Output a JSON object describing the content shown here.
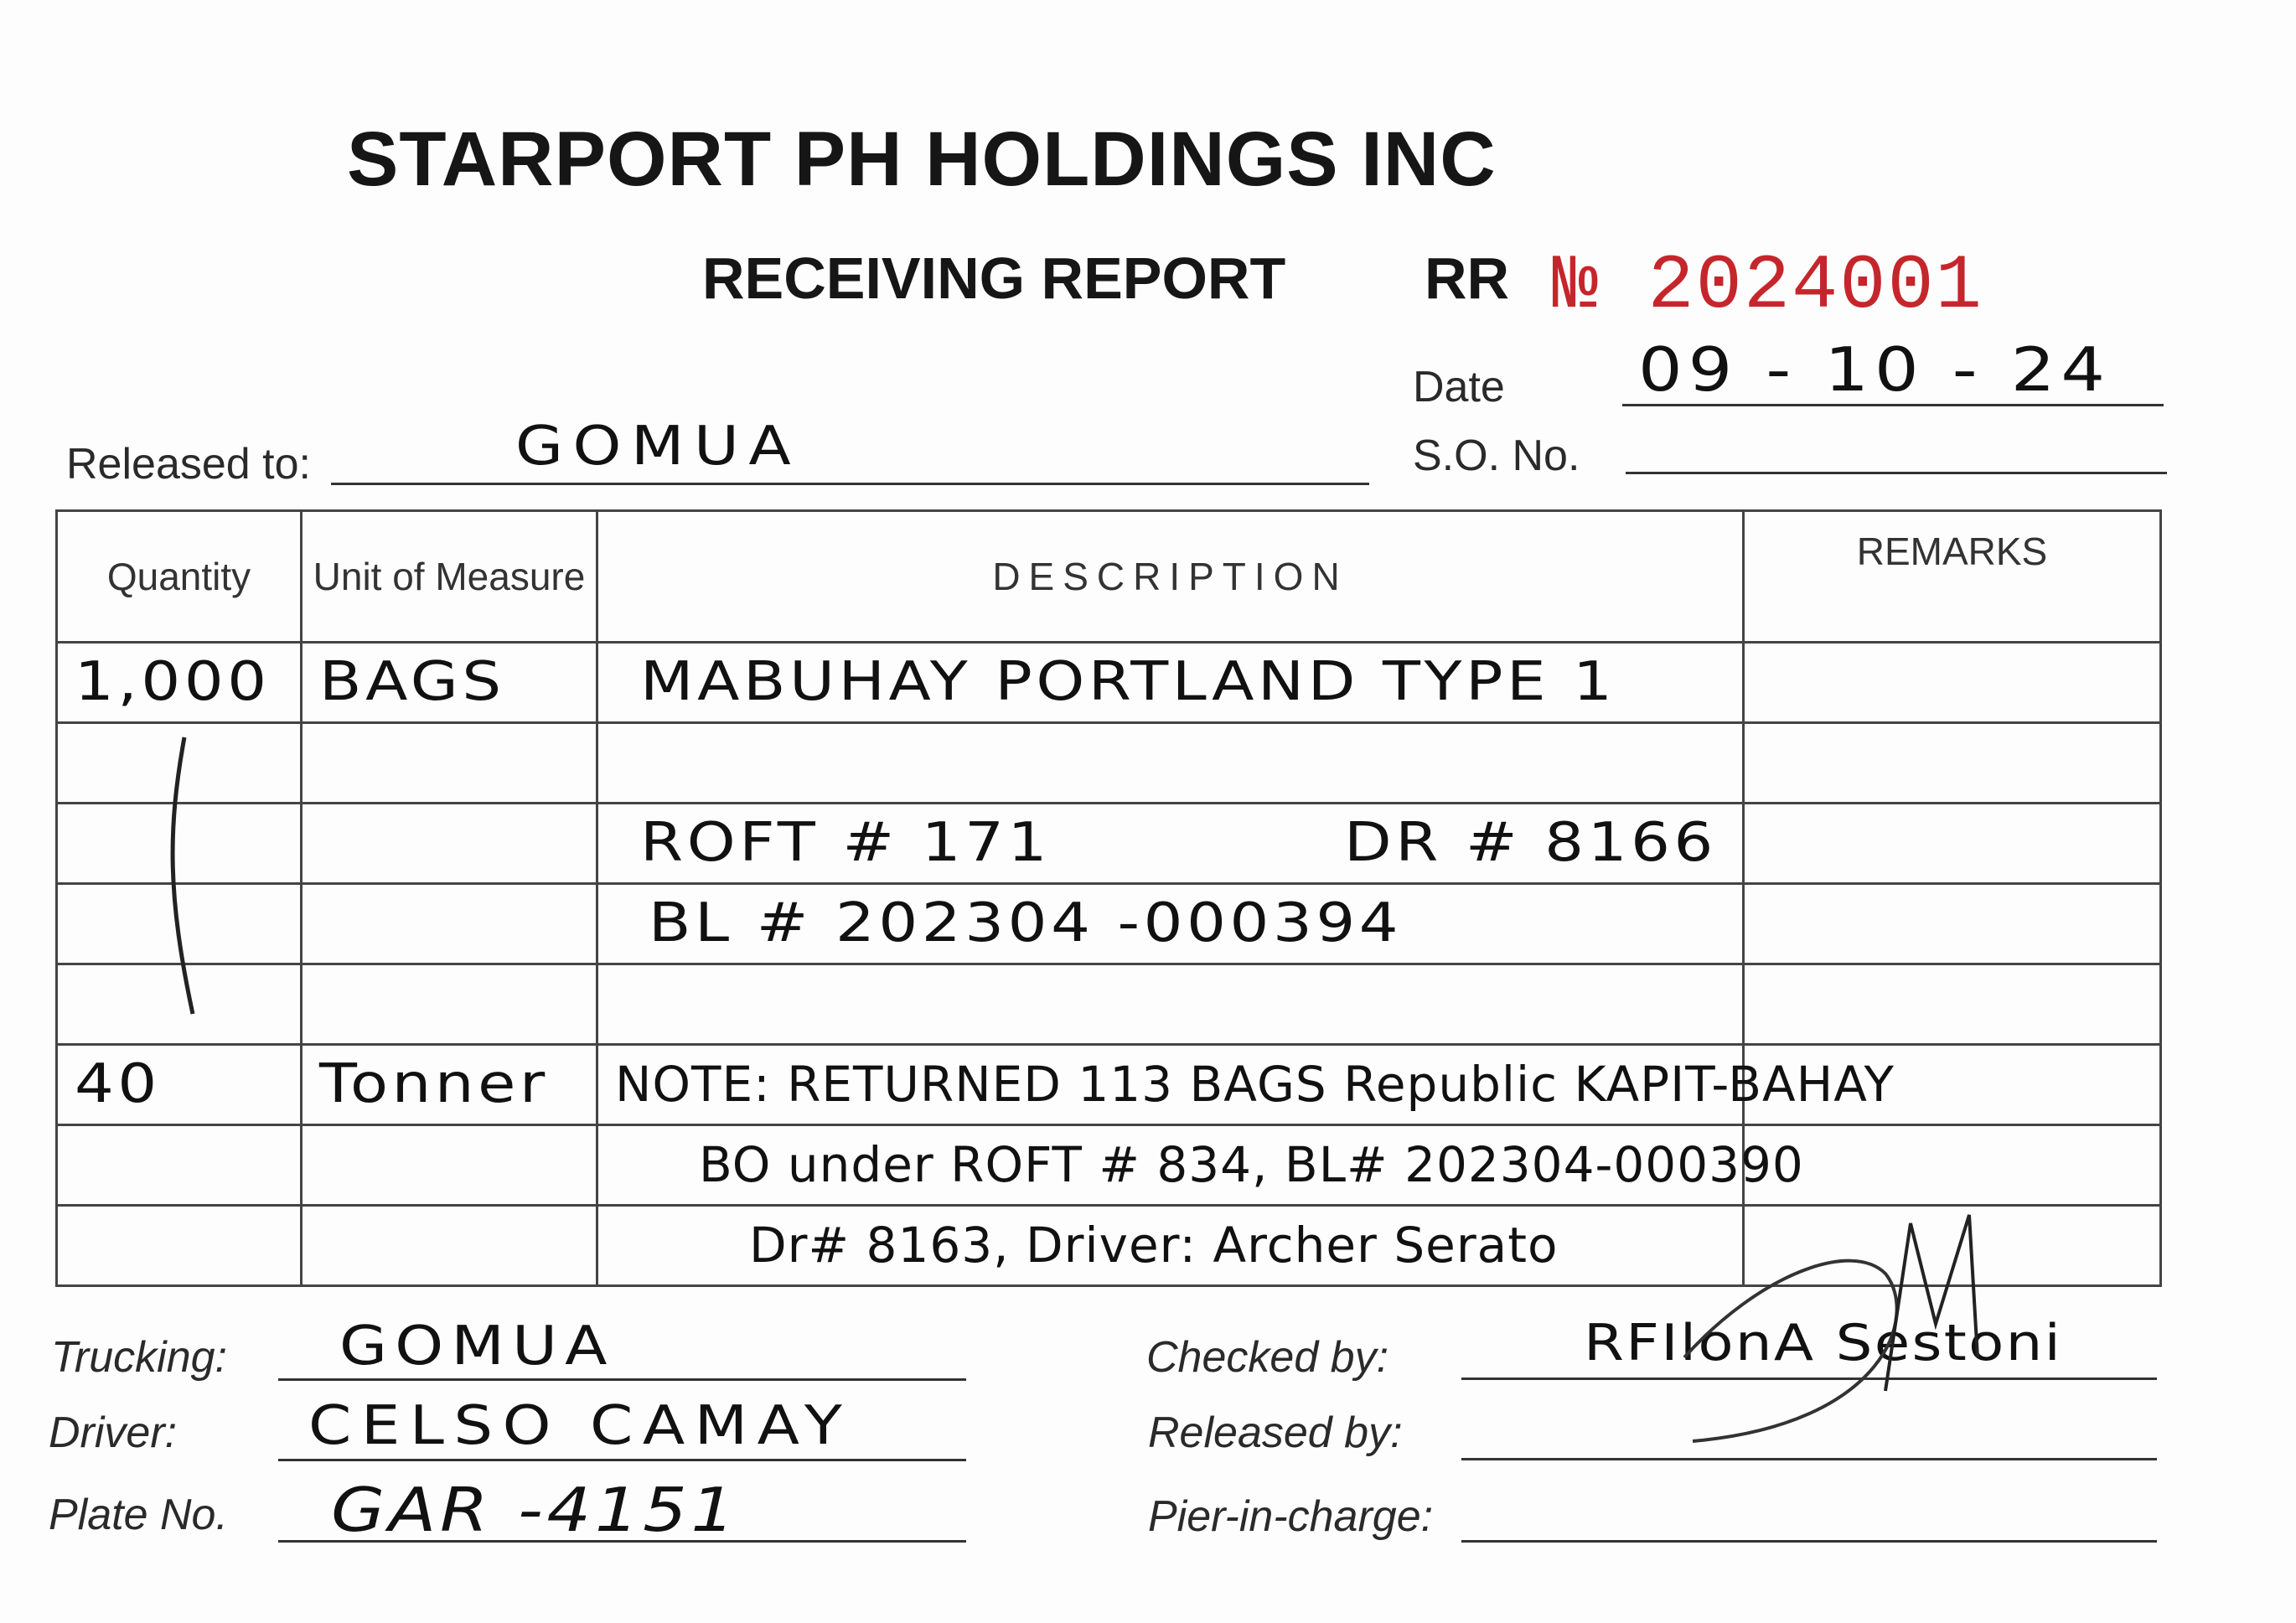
{
  "header": {
    "company": "STARPORT PH HOLDINGS INC",
    "report_title": "RECEIVING REPORT",
    "rr_label": "RR",
    "rr_number": "№ 2024001",
    "rr_number_color": "#c5262b"
  },
  "fields": {
    "date_label": "Date",
    "date_value": "09 - 10 - 24",
    "released_to_label": "Released to:",
    "released_to_value": "GOMUA",
    "so_no_label": "S.O. No.",
    "so_no_value": ""
  },
  "table": {
    "headers": [
      "Quantity",
      "Unit of Measure",
      "DESCRIPTION",
      "REMARKS"
    ],
    "rows": [
      {
        "qty": "1,000",
        "unit": "BAGS",
        "desc": "MABUHAY PORTLAND TYPE 1",
        "desc_right": "",
        "remarks": ""
      },
      {
        "qty": "",
        "unit": "",
        "desc": "",
        "desc_right": "",
        "remarks": ""
      },
      {
        "qty": "",
        "unit": "",
        "desc": "ROFT # 171",
        "desc_right": "DR # 8166",
        "remarks": ""
      },
      {
        "qty": "",
        "unit": "",
        "desc": "BL # 202304 -000394",
        "desc_right": "",
        "remarks": ""
      },
      {
        "qty": "",
        "unit": "",
        "desc": "",
        "desc_right": "",
        "remarks": ""
      },
      {
        "qty": "40",
        "unit": "Tonner",
        "desc": "NOTE: RETURNED 113 BAGS Republic KAPIT-BAHAY",
        "desc_right": "",
        "remarks": ""
      },
      {
        "qty": "",
        "unit": "",
        "desc": "BO under ROFT # 834, BL# 202304-000390",
        "desc_right": "",
        "remarks": ""
      },
      {
        "qty": "",
        "unit": "",
        "desc": "Dr# 8163, Driver: Archer Serato",
        "desc_right": "",
        "remarks": ""
      }
    ]
  },
  "footer": {
    "trucking_label": "Trucking:",
    "trucking_value": "GOMUA",
    "driver_label": "Driver:",
    "driver_value": "CELSO CAMAY",
    "plate_label": "Plate No.",
    "plate_value": "GAR -4151",
    "checked_by_label": "Checked by:",
    "checked_by_value": "RFIlonA Sestoni",
    "released_by_label": "Released by:",
    "released_by_value": "",
    "pier_label": "Pier-in-charge:",
    "pier_value": ""
  }
}
